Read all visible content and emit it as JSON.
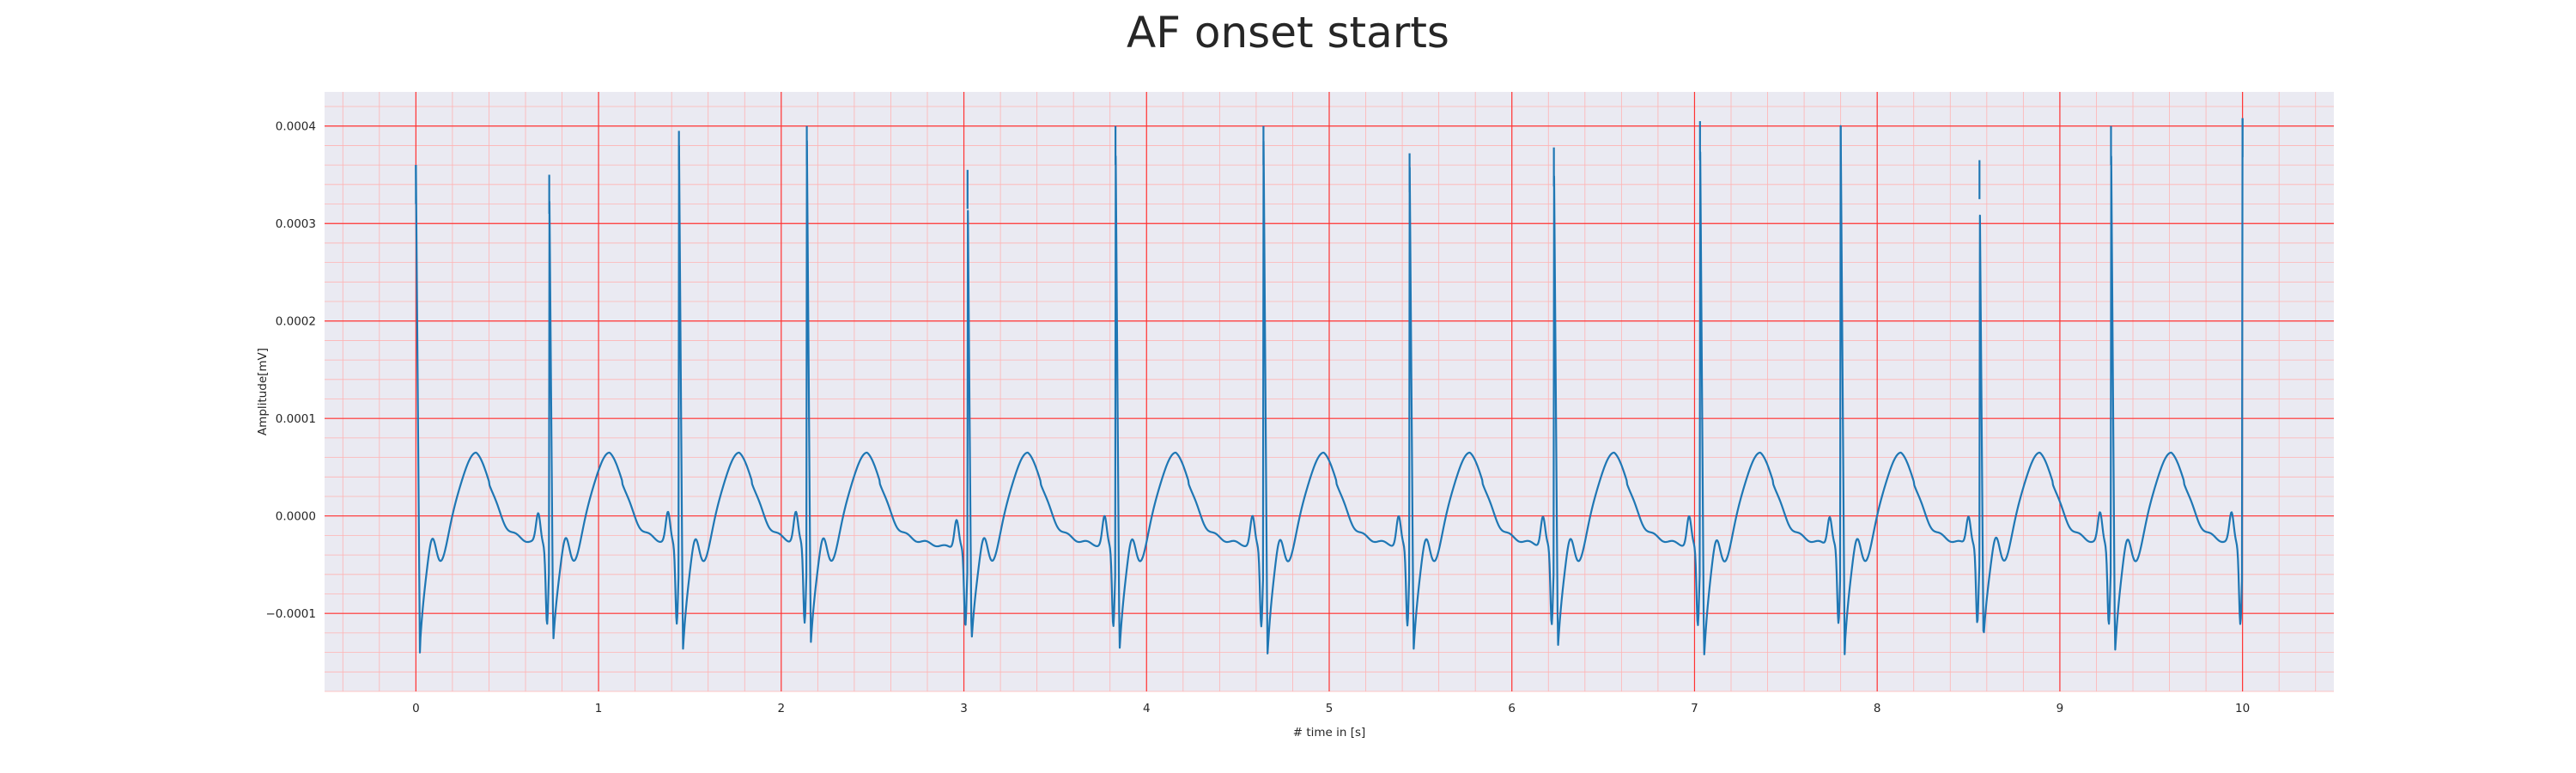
{
  "chart_data": {
    "type": "line",
    "title": "AF onset starts",
    "xlabel": "# time in [s]",
    "ylabel": "Amplitude[mV]",
    "xlim": [
      -0.5,
      10.5
    ],
    "ylim": [
      -0.00018,
      0.000435
    ],
    "x_ticks": [
      0,
      1,
      2,
      3,
      4,
      5,
      6,
      7,
      8,
      9,
      10
    ],
    "x_tick_labels": [
      "0",
      "1",
      "2",
      "3",
      "4",
      "5",
      "6",
      "7",
      "8",
      "9",
      "10"
    ],
    "y_ticks": [
      -0.0001,
      0.0,
      0.0001,
      0.0002,
      0.0003,
      0.0004
    ],
    "y_tick_labels": [
      "−0.0001",
      "0.0000",
      "0.0001",
      "0.0002",
      "0.0003",
      "0.0004"
    ],
    "grid": "on",
    "series_color": "#1f77b4",
    "background_color": "#eaeaf2",
    "major_grid_color": "#ff3333",
    "minor_grid_color": "#ffb3b3",
    "r_peaks": [
      {
        "t": 0.0,
        "amp": 0.00036
      },
      {
        "t": 0.73,
        "amp": 0.00035
      },
      {
        "t": 1.44,
        "amp": 0.000395
      },
      {
        "t": 2.14,
        "amp": 0.0004
      },
      {
        "t": 3.02,
        "amp": 0.000355
      },
      {
        "t": 3.83,
        "amp": 0.0004
      },
      {
        "t": 4.64,
        "amp": 0.0004
      },
      {
        "t": 5.44,
        "amp": 0.000372
      },
      {
        "t": 6.23,
        "amp": 0.000378
      },
      {
        "t": 7.03,
        "amp": 0.000405
      },
      {
        "t": 7.8,
        "amp": 0.0004
      },
      {
        "t": 8.56,
        "amp": 0.000365
      },
      {
        "t": 9.28,
        "amp": 0.0004
      },
      {
        "t": 10.0,
        "amp": 0.000408
      }
    ],
    "s_troughs": [
      -0.000143,
      -0.000138,
      -0.000147,
      -0.00014,
      -0.000138,
      -0.000148,
      -0.000152,
      -0.000147,
      -0.000145,
      -0.000155,
      -0.000145,
      -0.000135,
      -0.00015
    ],
    "t_wave_peak_amp": 5e-05,
    "baseline_trough_amp": -9e-05
  }
}
